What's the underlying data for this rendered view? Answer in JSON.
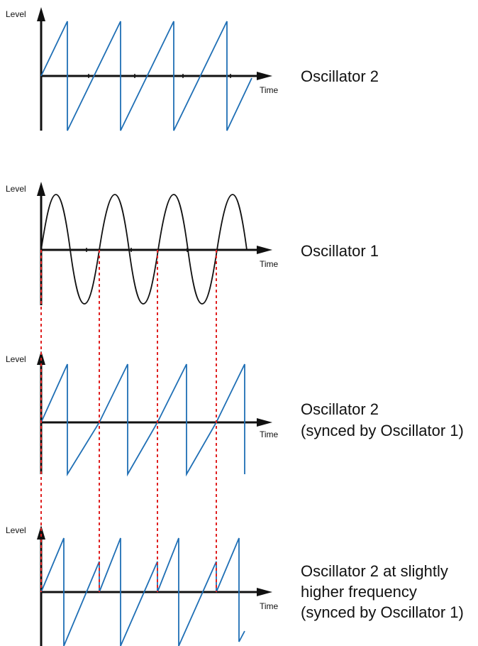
{
  "colors": {
    "axis": "#111111",
    "saw": "#1f6fb5",
    "sine": "#111111",
    "sync_marker": "#e02020"
  },
  "panels": [
    {
      "id": "osc2",
      "y_label": "Level",
      "x_label": "Time",
      "title_lines": [
        "Oscillator 2"
      ],
      "waveform": "saw"
    },
    {
      "id": "osc1",
      "y_label": "Level",
      "x_label": "Time",
      "title_lines": [
        "Oscillator 1"
      ],
      "waveform": "sine"
    },
    {
      "id": "osc2-synced",
      "y_label": "Level",
      "x_label": "Time",
      "title_lines": [
        "Oscillator 2",
        "(synced by Oscillator 1)"
      ],
      "waveform": "saw"
    },
    {
      "id": "osc2-higher-synced",
      "y_label": "Level",
      "x_label": "Time",
      "title_lines": [
        "Oscillator 2 at slightly",
        "higher frequency",
        "(synced by Oscillator 1)"
      ],
      "waveform": "saw"
    }
  ],
  "sync_line_style": "dashed"
}
